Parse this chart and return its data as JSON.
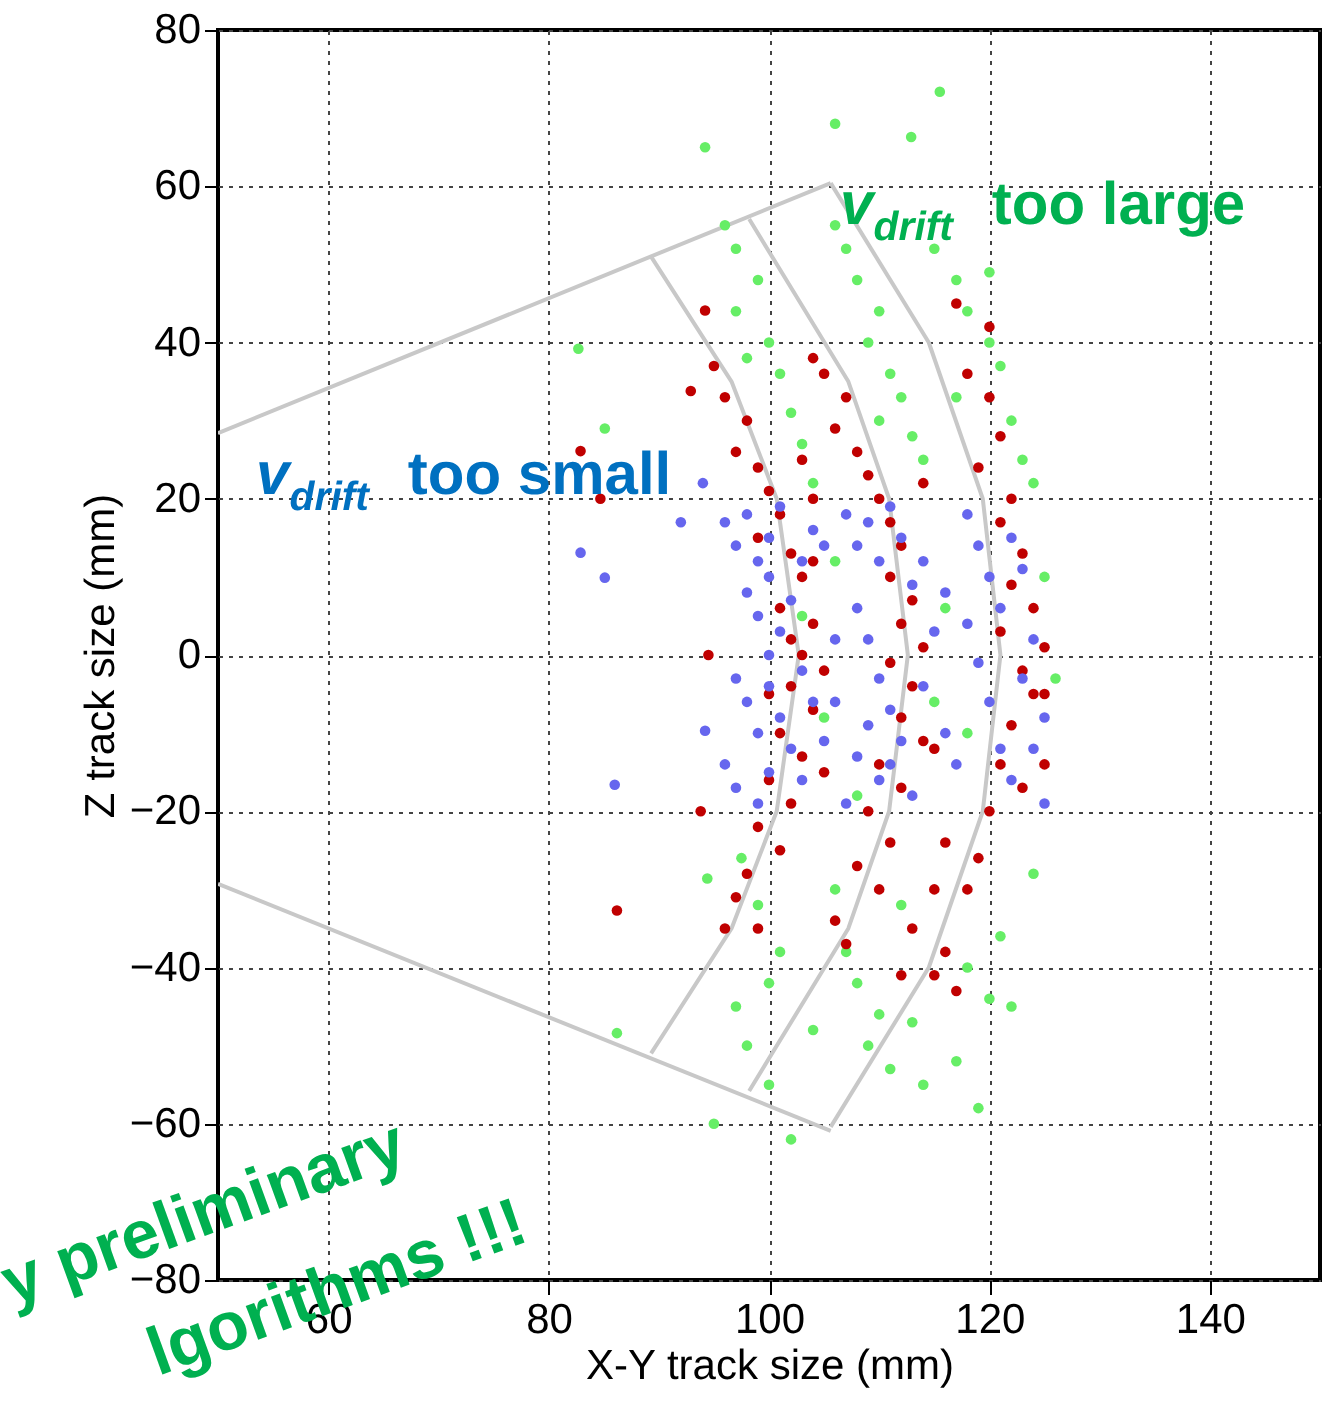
{
  "chart_data": {
    "type": "scatter",
    "xlabel": "X-Y track size (mm)",
    "ylabel": "Z track size (mm)",
    "xlim": [
      50,
      150
    ],
    "xticks": [
      60,
      80,
      100,
      120,
      140
    ],
    "ylim": [
      -80,
      80
    ],
    "yticks": [
      -80,
      -60,
      -40,
      -20,
      0,
      20,
      40,
      60,
      80
    ],
    "grid": true,
    "marker": "circle",
    "annotations": [
      "v$_{drift}$ too large",
      "v$_{drift}$ too small",
      "y preliminary",
      "lgorithms !!!"
    ],
    "series": [
      {
        "type": "line",
        "marker": "none",
        "color": "#c8c8c8",
        "x": [
          50,
          105.6
        ],
        "values": [
          28.4,
          60.4
        ]
      },
      {
        "type": "line",
        "marker": "none",
        "color": "#c8c8c8",
        "x": [
          50,
          105.6
        ],
        "values": [
          -29.3,
          -60.9
        ]
      },
      {
        "type": "line",
        "marker": "none",
        "color": "#c8c8c8",
        "x": [
          89.3,
          96.6,
          100.7,
          102.7,
          100.7,
          96.6,
          89.3
        ],
        "values": [
          51,
          35,
          20,
          0,
          -20,
          -35,
          -51
        ]
      },
      {
        "type": "line",
        "marker": "none",
        "color": "#c8c8c8",
        "x": [
          98.2,
          107.2,
          110.9,
          112.6,
          110.9,
          107.2,
          98.2
        ],
        "values": [
          55.8,
          35,
          20,
          0,
          -20,
          -35,
          -55.8
        ]
      },
      {
        "type": "line",
        "marker": "none",
        "color": "#c8c8c8",
        "x": [
          105.6,
          114.5,
          119.4,
          121,
          119.4,
          114.5,
          105.6
        ],
        "values": [
          60.4,
          40,
          20,
          0,
          -20,
          -40,
          -60.4
        ]
      },
      {
        "type": "scatter",
        "color": "#66ee66",
        "x": [
          94.2,
          106,
          112.9,
          115.5,
          82.7,
          85.1,
          94.4,
          86.2,
          96,
          97,
          99,
          97,
          100,
          101,
          102,
          103,
          98,
          104,
          106,
          107,
          108,
          110,
          109,
          111,
          112,
          113,
          114,
          110,
          115,
          117,
          118,
          120,
          121,
          122,
          123,
          124,
          117,
          120,
          103,
          105,
          106,
          115,
          116,
          126,
          125,
          108,
          118,
          97.5,
          99,
          101,
          100,
          97,
          98,
          100,
          104,
          107,
          108,
          110,
          109,
          111,
          113,
          114,
          117,
          118,
          120,
          122,
          121,
          119,
          95,
          102,
          106,
          112,
          124
        ],
        "values": [
          65,
          68,
          66.3,
          72.1,
          39.2,
          29,
          -28.6,
          -48.4,
          55,
          52,
          48,
          44,
          40,
          36,
          31,
          27,
          38,
          22,
          55,
          52,
          48,
          44,
          40,
          36,
          33,
          28,
          25,
          30,
          52,
          48,
          44,
          40,
          37,
          30,
          25,
          22,
          33,
          49,
          5,
          -8,
          12,
          -6,
          6,
          -3,
          10,
          -18,
          -10,
          -26,
          -32,
          -38,
          -42,
          -45,
          -50,
          -55,
          -48,
          -38,
          -42,
          -46,
          -50,
          -53,
          -47,
          -55,
          -52,
          -40,
          -44,
          -45,
          -36,
          -58,
          -60,
          -62,
          -30,
          -32,
          -28
        ]
      },
      {
        "type": "scatter",
        "color": "#c00000",
        "x": [
          82.9,
          84.7,
          94.5,
          93.8,
          86.2,
          94.2,
          92.9,
          95,
          96,
          98,
          97,
          99,
          100,
          101,
          99,
          102,
          103,
          101,
          104,
          102,
          103,
          105,
          102,
          104,
          101,
          103,
          100,
          102,
          99,
          101,
          98,
          97,
          96,
          99,
          104,
          105,
          103,
          100,
          104,
          104,
          105,
          107,
          106,
          108,
          109,
          110,
          111,
          112,
          111,
          113,
          112,
          114,
          111,
          113,
          112,
          114,
          110,
          112,
          109,
          111,
          108,
          110,
          106,
          107,
          113,
          115,
          116,
          114,
          115,
          117,
          120,
          118,
          120,
          121,
          119,
          122,
          121,
          123,
          122,
          124,
          121,
          125,
          123,
          124,
          122,
          121,
          123,
          120,
          119,
          118,
          116,
          115,
          117,
          112,
          125,
          125
        ],
        "values": [
          26.1,
          20,
          0,
          -20,
          -32.7,
          44.1,
          33.8,
          37,
          33,
          30,
          26,
          24,
          21,
          18,
          15,
          13,
          10,
          6,
          4,
          2,
          0,
          -2,
          -4,
          -7,
          -10,
          -13,
          -16,
          -19,
          -22,
          -25,
          -28,
          -31,
          -35,
          -35,
          20,
          -15,
          25,
          -5,
          12,
          38,
          36,
          33,
          29,
          26,
          23,
          20,
          17,
          14,
          10,
          7,
          4,
          1,
          -1,
          -4,
          -8,
          -11,
          -14,
          -17,
          -20,
          -24,
          -27,
          -30,
          -34,
          -37,
          -35,
          -30,
          -24,
          22,
          -12,
          45,
          42,
          36,
          33,
          28,
          24,
          20,
          17,
          13,
          9,
          6,
          3,
          1,
          -2,
          -5,
          -9,
          -14,
          -17,
          -20,
          -26,
          -30,
          -38,
          -41,
          -43,
          -41,
          -5,
          -14
        ]
      },
      {
        "type": "scatter",
        "color": "#6666ee",
        "x": [
          96,
          97,
          98,
          99,
          100,
          101,
          98,
          99,
          100,
          101,
          102,
          103,
          104,
          97,
          98,
          99,
          100,
          101,
          102,
          103,
          104,
          96,
          97,
          99,
          100,
          103,
          105,
          106,
          105,
          100,
          107,
          108,
          109,
          110,
          111,
          112,
          113,
          108,
          109,
          110,
          111,
          112,
          109,
          108,
          110,
          113,
          114,
          115,
          116,
          107,
          111,
          114,
          116,
          106,
          118,
          119,
          120,
          121,
          118,
          119,
          120,
          121,
          122,
          123,
          124,
          125,
          117,
          123,
          122,
          125,
          124,
          82.9,
          85.1,
          86,
          94.2,
          94,
          92
        ],
        "values": [
          17,
          14,
          18,
          12,
          15,
          19,
          8,
          5,
          10,
          3,
          7,
          12,
          16,
          -3,
          -6,
          -10,
          -4,
          -8,
          -12,
          -2,
          -6,
          -14,
          -17,
          -19,
          -15,
          -16,
          -11,
          2,
          14,
          0,
          18,
          14,
          17,
          12,
          19,
          15,
          9,
          6,
          2,
          -3,
          -7,
          -11,
          -9,
          -13,
          -16,
          -18,
          -4,
          3,
          8,
          -19,
          -14,
          12,
          -10,
          -6,
          18,
          14,
          10,
          6,
          4,
          -1,
          -6,
          -12,
          -16,
          -3,
          2,
          -8,
          -14,
          11,
          15,
          -19,
          -12,
          13.1,
          9.9,
          -16.6,
          -9.7,
          22,
          17
        ]
      }
    ]
  }
}
